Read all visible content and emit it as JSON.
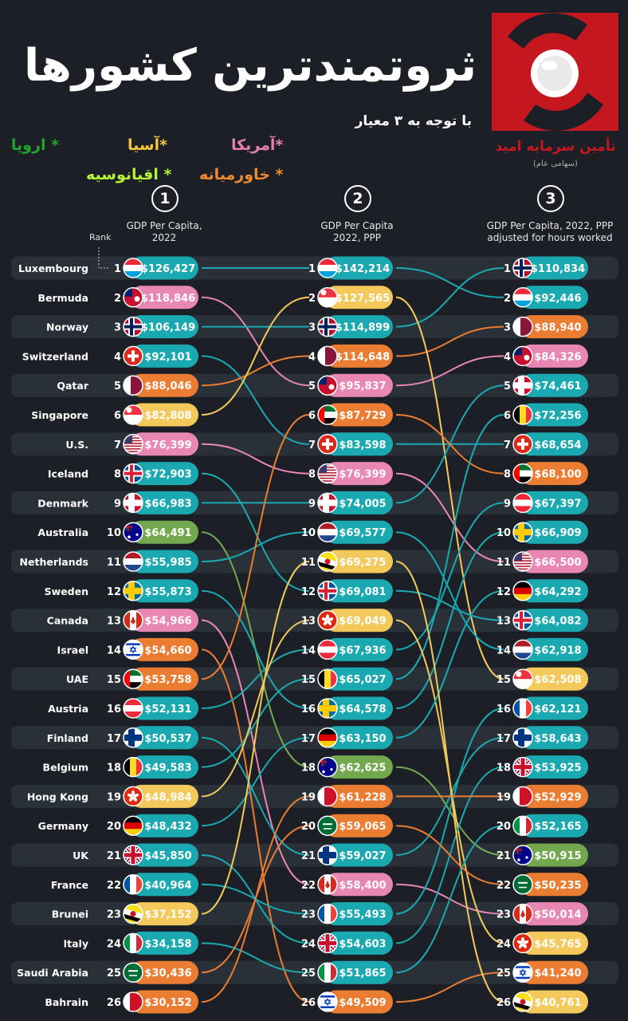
{
  "header": {
    "title": "ثروتمندترین کشورها",
    "subtitle": "با توجه به ۳ معیار",
    "logo_text": "تأمین سرمایه امید",
    "logo_sub": "(سهامی عام)"
  },
  "legend": [
    {
      "label": "* اروپا",
      "color": "#22a52a"
    },
    {
      "label": "*آسیا",
      "color": "#f4c63d"
    },
    {
      "label": "*آمریکا",
      "color": "#e87fb0"
    },
    {
      "label": "* اقیانوسیه",
      "color": "#b5f23a"
    },
    {
      "label": "* خاورمیانه",
      "color": "#f08a2e"
    }
  ],
  "rank_label": "Rank",
  "colors": {
    "europe": "#1aa9b0",
    "asia": "#f4c95b",
    "america": "#e887b4",
    "oceania": "#74a84f",
    "middle_east": "#ea7d32",
    "row_band": "#2a3038"
  },
  "chart_data": {
    "type": "table",
    "countries": [
      "Luxembourg",
      "Bermuda",
      "Norway",
      "Switzerland",
      "Qatar",
      "Singapore",
      "U.S.",
      "Iceland",
      "Denmark",
      "Australia",
      "Netherlands",
      "Sweden",
      "Canada",
      "Israel",
      "UAE",
      "Austria",
      "Finland",
      "Belgium",
      "Hong Kong",
      "Germany",
      "UK",
      "France",
      "Brunei",
      "Italy",
      "Saudi Arabia",
      "Bahrain"
    ],
    "columns": [
      {
        "number": "1",
        "header": "GDP Per Capita,\n2022",
        "entries": [
          {
            "rank": "1",
            "country": "Luxembourg",
            "value": "$126,427",
            "region": "europe",
            "flag": "luxembourg"
          },
          {
            "rank": "2",
            "country": "Bermuda",
            "value": "$118,846",
            "region": "america",
            "flag": "bermuda"
          },
          {
            "rank": "3",
            "country": "Norway",
            "value": "$106,149",
            "region": "europe",
            "flag": "norway"
          },
          {
            "rank": "4",
            "country": "Switzerland",
            "value": "$92,101",
            "region": "europe",
            "flag": "switzerland"
          },
          {
            "rank": "5",
            "country": "Qatar",
            "value": "$88,046",
            "region": "middle_east",
            "flag": "qatar"
          },
          {
            "rank": "6",
            "country": "Singapore",
            "value": "$82,808",
            "region": "asia",
            "flag": "singapore"
          },
          {
            "rank": "7",
            "country": "U.S.",
            "value": "$76,399",
            "region": "america",
            "flag": "us"
          },
          {
            "rank": "8",
            "country": "Iceland",
            "value": "$72,903",
            "region": "europe",
            "flag": "iceland"
          },
          {
            "rank": "9",
            "country": "Denmark",
            "value": "$66,983",
            "region": "europe",
            "flag": "denmark"
          },
          {
            "rank": "10",
            "country": "Australia",
            "value": "$64,491",
            "region": "oceania",
            "flag": "australia"
          },
          {
            "rank": "11",
            "country": "Netherlands",
            "value": "$55,985",
            "region": "europe",
            "flag": "netherlands"
          },
          {
            "rank": "12",
            "country": "Sweden",
            "value": "$55,873",
            "region": "europe",
            "flag": "sweden"
          },
          {
            "rank": "13",
            "country": "Canada",
            "value": "$54,966",
            "region": "america",
            "flag": "canada"
          },
          {
            "rank": "14",
            "country": "Israel",
            "value": "$54,660",
            "region": "middle_east",
            "flag": "israel"
          },
          {
            "rank": "15",
            "country": "UAE",
            "value": "$53,758",
            "region": "middle_east",
            "flag": "uae"
          },
          {
            "rank": "16",
            "country": "Austria",
            "value": "$52,131",
            "region": "europe",
            "flag": "austria"
          },
          {
            "rank": "17",
            "country": "Finland",
            "value": "$50,537",
            "region": "europe",
            "flag": "finland"
          },
          {
            "rank": "18",
            "country": "Belgium",
            "value": "$49,583",
            "region": "europe",
            "flag": "belgium"
          },
          {
            "rank": "19",
            "country": "Hong Kong",
            "value": "$48,984",
            "region": "asia",
            "flag": "hongkong"
          },
          {
            "rank": "20",
            "country": "Germany",
            "value": "$48,432",
            "region": "europe",
            "flag": "germany"
          },
          {
            "rank": "21",
            "country": "UK",
            "value": "$45,850",
            "region": "europe",
            "flag": "uk"
          },
          {
            "rank": "22",
            "country": "France",
            "value": "$40,964",
            "region": "europe",
            "flag": "france"
          },
          {
            "rank": "23",
            "country": "Brunei",
            "value": "$37,152",
            "region": "asia",
            "flag": "brunei"
          },
          {
            "rank": "24",
            "country": "Italy",
            "value": "$34,158",
            "region": "europe",
            "flag": "italy"
          },
          {
            "rank": "25",
            "country": "Saudi Arabia",
            "value": "$30,436",
            "region": "middle_east",
            "flag": "saudi"
          },
          {
            "rank": "26",
            "country": "Bahrain",
            "value": "$30,152",
            "region": "middle_east",
            "flag": "bahrain"
          }
        ]
      },
      {
        "number": "2",
        "header": "GDP Per Capita\n2022, PPP",
        "entries": [
          {
            "rank": "1",
            "country": "Luxembourg",
            "value": "$142,214",
            "region": "europe",
            "flag": "luxembourg"
          },
          {
            "rank": "2",
            "country": "Singapore",
            "value": "$127,565",
            "region": "asia",
            "flag": "singapore"
          },
          {
            "rank": "3",
            "country": "Norway",
            "value": "$114,899",
            "region": "europe",
            "flag": "norway"
          },
          {
            "rank": "4",
            "country": "Qatar",
            "value": "$114,648",
            "region": "middle_east",
            "flag": "qatar"
          },
          {
            "rank": "5",
            "country": "Bermuda",
            "value": "$95,837",
            "region": "america",
            "flag": "bermuda"
          },
          {
            "rank": "6",
            "country": "UAE",
            "value": "$87,729",
            "region": "middle_east",
            "flag": "uae"
          },
          {
            "rank": "7",
            "country": "Switzerland",
            "value": "$83,598",
            "region": "europe",
            "flag": "switzerland"
          },
          {
            "rank": "8",
            "country": "U.S.",
            "value": "$76,399",
            "region": "america",
            "flag": "us"
          },
          {
            "rank": "9",
            "country": "Denmark",
            "value": "$74,005",
            "region": "europe",
            "flag": "denmark"
          },
          {
            "rank": "10",
            "country": "Netherlands",
            "value": "$69,577",
            "region": "europe",
            "flag": "netherlands"
          },
          {
            "rank": "11",
            "country": "Brunei",
            "value": "$69,275",
            "region": "asia",
            "flag": "brunei"
          },
          {
            "rank": "12",
            "country": "Iceland",
            "value": "$69,081",
            "region": "europe",
            "flag": "iceland"
          },
          {
            "rank": "13",
            "country": "Hong Kong",
            "value": "$69,049",
            "region": "asia",
            "flag": "hongkong"
          },
          {
            "rank": "14",
            "country": "Austria",
            "value": "$67,936",
            "region": "europe",
            "flag": "austria"
          },
          {
            "rank": "15",
            "country": "Belgium",
            "value": "$65,027",
            "region": "europe",
            "flag": "belgium"
          },
          {
            "rank": "16",
            "country": "Sweden",
            "value": "$64,578",
            "region": "europe",
            "flag": "sweden"
          },
          {
            "rank": "17",
            "country": "Germany",
            "value": "$63,150",
            "region": "europe",
            "flag": "germany"
          },
          {
            "rank": "18",
            "country": "Australia",
            "value": "$62,625",
            "region": "oceania",
            "flag": "australia"
          },
          {
            "rank": "19",
            "country": "Bahrain",
            "value": "$61,228",
            "region": "middle_east",
            "flag": "bahrain"
          },
          {
            "rank": "20",
            "country": "Saudi Arabia",
            "value": "$59,065",
            "region": "middle_east",
            "flag": "saudi"
          },
          {
            "rank": "21",
            "country": "Finland",
            "value": "$59,027",
            "region": "europe",
            "flag": "finland"
          },
          {
            "rank": "22",
            "country": "Canada",
            "value": "$58,400",
            "region": "america",
            "flag": "canada"
          },
          {
            "rank": "23",
            "country": "France",
            "value": "$55,493",
            "region": "europe",
            "flag": "france"
          },
          {
            "rank": "24",
            "country": "UK",
            "value": "$54,603",
            "region": "europe",
            "flag": "uk"
          },
          {
            "rank": "25",
            "country": "Italy",
            "value": "$51,865",
            "region": "europe",
            "flag": "italy"
          },
          {
            "rank": "26",
            "country": "Israel",
            "value": "$49,509",
            "region": "middle_east",
            "flag": "israel"
          }
        ]
      },
      {
        "number": "3",
        "header": "GDP Per Capita, 2022, PPP\nadjusted for hours worked",
        "entries": [
          {
            "rank": "1",
            "country": "Norway",
            "value": "$110,834",
            "region": "europe",
            "flag": "norway"
          },
          {
            "rank": "2",
            "country": "Luxembourg",
            "value": "$92,446",
            "region": "europe",
            "flag": "luxembourg"
          },
          {
            "rank": "3",
            "country": "Qatar",
            "value": "$88,940",
            "region": "middle_east",
            "flag": "qatar"
          },
          {
            "rank": "4",
            "country": "Bermuda",
            "value": "$84,326",
            "region": "america",
            "flag": "bermuda"
          },
          {
            "rank": "5",
            "country": "Denmark",
            "value": "$74,461",
            "region": "europe",
            "flag": "denmark"
          },
          {
            "rank": "6",
            "country": "Belgium",
            "value": "$72,256",
            "region": "europe",
            "flag": "belgium"
          },
          {
            "rank": "7",
            "country": "Switzerland",
            "value": "$68,654",
            "region": "europe",
            "flag": "switzerland"
          },
          {
            "rank": "8",
            "country": "UAE",
            "value": "$68,100",
            "region": "middle_east",
            "flag": "uae"
          },
          {
            "rank": "9",
            "country": "Austria",
            "value": "$67,397",
            "region": "europe",
            "flag": "austria"
          },
          {
            "rank": "10",
            "country": "Sweden",
            "value": "$66,909",
            "region": "europe",
            "flag": "sweden"
          },
          {
            "rank": "11",
            "country": "U.S.",
            "value": "$66,500",
            "region": "america",
            "flag": "us"
          },
          {
            "rank": "12",
            "country": "Germany",
            "value": "$64,292",
            "region": "europe",
            "flag": "germany"
          },
          {
            "rank": "13",
            "country": "Iceland",
            "value": "$64,082",
            "region": "europe",
            "flag": "iceland"
          },
          {
            "rank": "14",
            "country": "Netherlands",
            "value": "$62,918",
            "region": "europe",
            "flag": "netherlands"
          },
          {
            "rank": "15",
            "country": "Singapore",
            "value": "$62,508",
            "region": "asia",
            "flag": "singapore"
          },
          {
            "rank": "16",
            "country": "France",
            "value": "$62,121",
            "region": "europe",
            "flag": "france"
          },
          {
            "rank": "17",
            "country": "Finland",
            "value": "$58,643",
            "region": "europe",
            "flag": "finland"
          },
          {
            "rank": "18",
            "country": "UK",
            "value": "$53,925",
            "region": "europe",
            "flag": "uk"
          },
          {
            "rank": "19",
            "country": "Bahrain",
            "value": "$52,929",
            "region": "middle_east",
            "flag": "bahrain"
          },
          {
            "rank": "20",
            "country": "Italy",
            "value": "$52,165",
            "region": "europe",
            "flag": "italy"
          },
          {
            "rank": "21",
            "country": "Australia",
            "value": "$50,915",
            "region": "oceania",
            "flag": "australia"
          },
          {
            "rank": "22",
            "country": "Saudi Arabia",
            "value": "$50,235",
            "region": "middle_east",
            "flag": "saudi"
          },
          {
            "rank": "23",
            "country": "Canada",
            "value": "$50,014",
            "region": "america",
            "flag": "canada"
          },
          {
            "rank": "24",
            "country": "Hong Kong",
            "value": "$45,765",
            "region": "asia",
            "flag": "hongkong"
          },
          {
            "rank": "25",
            "country": "Israel",
            "value": "$41,240",
            "region": "middle_east",
            "flag": "israel"
          },
          {
            "rank": "26",
            "country": "Brunei",
            "value": "$40,761",
            "region": "asia",
            "flag": "brunei"
          }
        ]
      }
    ]
  }
}
